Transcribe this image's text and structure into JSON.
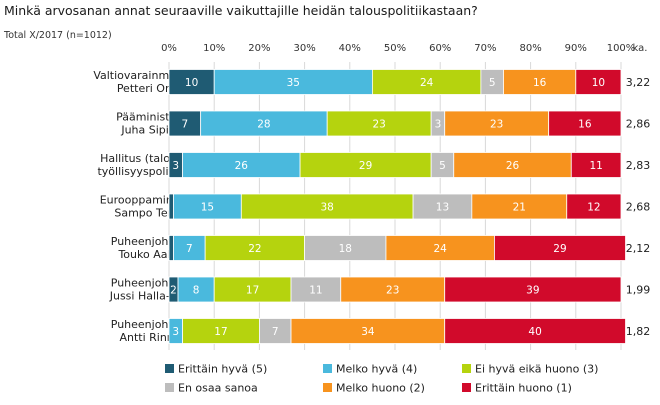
{
  "title": "Minkä arvosanan annat seuraaville vaikuttajille heidän talouspolitiikastaan?",
  "subtitle": "Total X/2017 (n=1012)",
  "colors": {
    "s1": "#1f5b73",
    "s2": "#4ab9dd",
    "s3": "#b5d30e",
    "s4": "#bdbdbd",
    "s5": "#f7931e",
    "s6": "#d10a2b",
    "grid": "#d9d9d9",
    "label_dark": "#ffffff",
    "label_light": "#ffffff"
  },
  "chart_data": {
    "type": "bar",
    "orientation": "horizontal-stacked-100",
    "xlim": [
      0,
      100
    ],
    "x_ticks": [
      "0%",
      "10%",
      "20%",
      "30%",
      "40%",
      "50%",
      "60%",
      "70%",
      "80%",
      "90%",
      "100%"
    ],
    "avg_header": "ka.",
    "grid": true,
    "legend_position": "bottom",
    "categories": [
      [
        "Valtiovarainministeri",
        "Petteri Orpo"
      ],
      [
        "Pääministeri",
        "Juha Sipilä"
      ],
      [
        "Hallitus (talous- ja",
        "työllisyyspolitiikka)"
      ],
      [
        "Eurooppaministeri",
        "Sampo Terho"
      ],
      [
        "Puheenjohtaja",
        "Touko Aalto"
      ],
      [
        "Puheenjohtaja",
        "Jussi Halla-aho"
      ],
      [
        "Puheenjohtaja",
        "Antti Rinne"
      ]
    ],
    "averages": [
      "3,22",
      "2,86",
      "2,83",
      "2,68",
      "2,12",
      "1,99",
      "1,82"
    ],
    "series": [
      {
        "name": "Erittäin hyvä (5)",
        "color_key": "s1",
        "values": [
          10,
          7,
          3,
          1,
          1,
          2,
          0
        ],
        "labels": [
          "10",
          "7",
          "3",
          "",
          "",
          "2",
          ""
        ]
      },
      {
        "name": "Melko hyvä (4)",
        "color_key": "s2",
        "values": [
          35,
          28,
          26,
          15,
          7,
          8,
          3
        ],
        "labels": [
          "35",
          "28",
          "26",
          "15",
          "7",
          "8",
          "3"
        ]
      },
      {
        "name": "Ei hyvä eikä huono (3)",
        "color_key": "s3",
        "values": [
          24,
          23,
          29,
          38,
          22,
          17,
          17
        ],
        "labels": [
          "24",
          "23",
          "29",
          "38",
          "22",
          "17",
          "17"
        ]
      },
      {
        "name": "En osaa sanoa",
        "color_key": "s4",
        "values": [
          5,
          3,
          5,
          13,
          18,
          11,
          7
        ],
        "labels": [
          "5",
          "3",
          "5",
          "13",
          "18",
          "11",
          "7"
        ]
      },
      {
        "name": "Melko huono (2)",
        "color_key": "s5",
        "values": [
          16,
          23,
          26,
          21,
          24,
          23,
          34
        ],
        "labels": [
          "16",
          "23",
          "26",
          "21",
          "24",
          "23",
          "34"
        ]
      },
      {
        "name": "Erittäin huono (1)",
        "color_key": "s6",
        "values": [
          10,
          16,
          11,
          12,
          29,
          39,
          40
        ],
        "labels": [
          "10",
          "16",
          "11",
          "12",
          "29",
          "39",
          "40"
        ]
      }
    ]
  }
}
